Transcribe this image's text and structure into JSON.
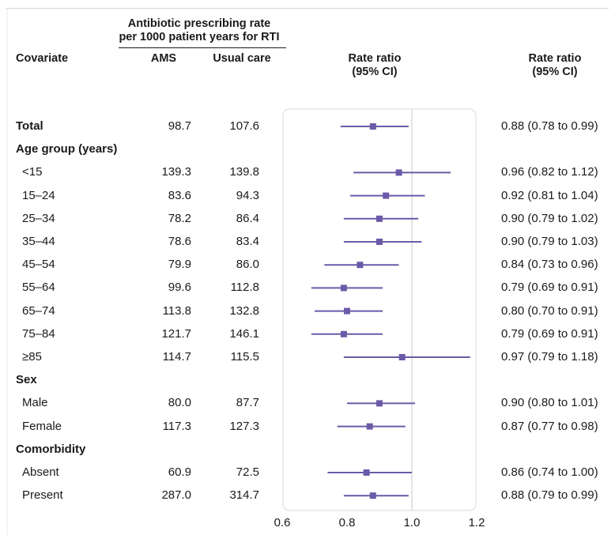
{
  "table": {
    "group_header": "Antibiotic prescribing rate per 1000 patient years for RTI",
    "group_header_lines": [
      "Antibiotic prescribing rate",
      "per 1000 patient years for RTI"
    ],
    "col_covariate": "Covariate",
    "col_ams": "AMS",
    "col_usual": "Usual care",
    "col_rr_mid_lines": [
      "Rate ratio",
      "(95% CI)"
    ],
    "col_rr_right_lines": [
      "Rate ratio",
      "(95% CI)"
    ]
  },
  "colors": {
    "marker": "#6b5aa8",
    "axis": "#c8c8c8",
    "panel_border": "#d9d9d9",
    "text": "#1a1a1a"
  },
  "chart_data": {
    "type": "forest",
    "xlim": [
      0.6,
      1.2
    ],
    "reference_line": 1.0,
    "x_ticks": [
      "0.6",
      "0.8",
      "1.0",
      "1.2"
    ],
    "rows": [
      {
        "label": "Total",
        "kind": "bold",
        "ams": "98.7",
        "usual": "107.6",
        "rr": 0.88,
        "lo": 0.78,
        "hi": 0.99,
        "ci_text": "0.88 (0.78 to 0.99)"
      },
      {
        "label": "Age group (years)",
        "kind": "section"
      },
      {
        "label": "<15",
        "kind": "sub",
        "ams": "139.3",
        "usual": "139.8",
        "rr": 0.96,
        "lo": 0.82,
        "hi": 1.12,
        "ci_text": "0.96 (0.82 to 1.12)"
      },
      {
        "label": "15–24",
        "kind": "sub",
        "ams": "83.6",
        "usual": "94.3",
        "rr": 0.92,
        "lo": 0.81,
        "hi": 1.04,
        "ci_text": "0.92 (0.81 to 1.04)"
      },
      {
        "label": "25–34",
        "kind": "sub",
        "ams": "78.2",
        "usual": "86.4",
        "rr": 0.9,
        "lo": 0.79,
        "hi": 1.02,
        "ci_text": "0.90 (0.79 to 1.02)"
      },
      {
        "label": "35–44",
        "kind": "sub",
        "ams": "78.6",
        "usual": "83.4",
        "rr": 0.9,
        "lo": 0.79,
        "hi": 1.03,
        "ci_text": "0.90 (0.79 to 1.03)"
      },
      {
        "label": "45–54",
        "kind": "sub",
        "ams": "79.9",
        "usual": "86.0",
        "rr": 0.84,
        "lo": 0.73,
        "hi": 0.96,
        "ci_text": "0.84 (0.73 to 0.96)"
      },
      {
        "label": "55–64",
        "kind": "sub",
        "ams": "99.6",
        "usual": "112.8",
        "rr": 0.79,
        "lo": 0.69,
        "hi": 0.91,
        "ci_text": "0.79 (0.69 to 0.91)"
      },
      {
        "label": "65–74",
        "kind": "sub",
        "ams": "113.8",
        "usual": "132.8",
        "rr": 0.8,
        "lo": 0.7,
        "hi": 0.91,
        "ci_text": "0.80 (0.70 to 0.91)"
      },
      {
        "label": "75–84",
        "kind": "sub",
        "ams": "121.7",
        "usual": "146.1",
        "rr": 0.79,
        "lo": 0.69,
        "hi": 0.91,
        "ci_text": "0.79 (0.69 to 0.91)"
      },
      {
        "label": "≥85",
        "kind": "sub",
        "ams": "114.7",
        "usual": "115.5",
        "rr": 0.97,
        "lo": 0.79,
        "hi": 1.18,
        "ci_text": "0.97 (0.79 to 1.18)"
      },
      {
        "label": "Sex",
        "kind": "section"
      },
      {
        "label": "Male",
        "kind": "sub",
        "ams": "80.0",
        "usual": "87.7",
        "rr": 0.9,
        "lo": 0.8,
        "hi": 1.01,
        "ci_text": "0.90 (0.80 to 1.01)"
      },
      {
        "label": "Female",
        "kind": "sub",
        "ams": "117.3",
        "usual": "127.3",
        "rr": 0.87,
        "lo": 0.77,
        "hi": 0.98,
        "ci_text": "0.87 (0.77 to 0.98)"
      },
      {
        "label": "Comorbidity",
        "kind": "section"
      },
      {
        "label": "Absent",
        "kind": "sub",
        "ams": "60.9",
        "usual": "72.5",
        "rr": 0.86,
        "lo": 0.74,
        "hi": 1.0,
        "ci_text": "0.86 (0.74 to 1.00)"
      },
      {
        "label": "Present",
        "kind": "sub",
        "ams": "287.0",
        "usual": "314.7",
        "rr": 0.88,
        "lo": 0.79,
        "hi": 0.99,
        "ci_text": "0.88 (0.79 to 0.99)"
      }
    ]
  }
}
